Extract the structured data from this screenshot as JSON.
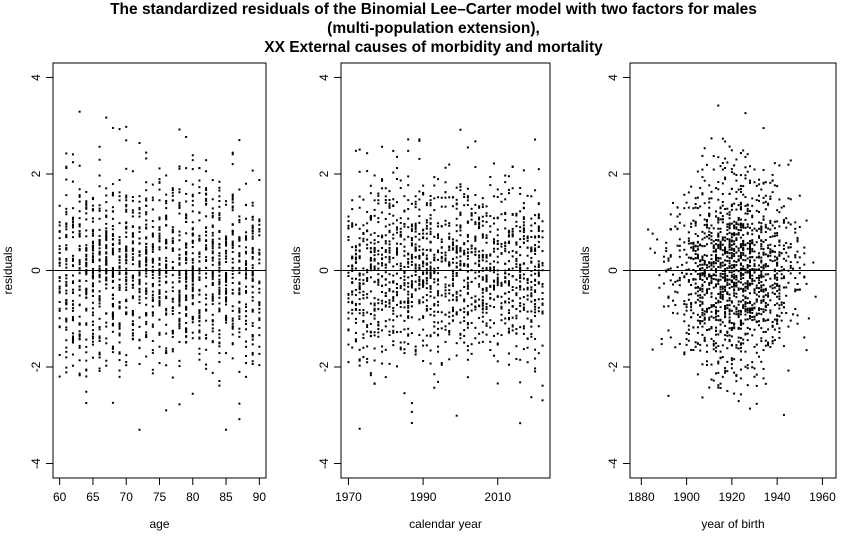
{
  "title_lines": [
    "The standardized residuals of the Binomial Lee–Carter model with two factors for males",
    "(multi-population extension),",
    "XX External causes of morbidity and mortality"
  ],
  "chart_data": [
    {
      "type": "scatter",
      "xlabel": "age",
      "ylabel": "residuals",
      "xticks": [
        60,
        65,
        70,
        75,
        80,
        85,
        90
      ],
      "xlim": [
        59,
        91
      ],
      "yticks": [
        -4,
        -2,
        0,
        2,
        4
      ],
      "ylim": [
        -4.3,
        4.3
      ],
      "reference_line_y": 0,
      "x_domain": [
        60,
        90
      ],
      "x_grid": "integer",
      "approx_points": 1500,
      "y_spread": 1.0
    },
    {
      "type": "scatter",
      "xlabel": "calendar year",
      "ylabel": "residuals",
      "xticks": [
        1970,
        1990,
        2010
      ],
      "xlim": [
        1968,
        2024
      ],
      "yticks": [
        -4,
        -2,
        0,
        2,
        4
      ],
      "ylim": [
        -4.3,
        4.3
      ],
      "reference_line_y": 0,
      "x_domain": [
        1970,
        2022
      ],
      "x_grid": "integer",
      "approx_points": 1500,
      "y_spread": 1.0
    },
    {
      "type": "scatter",
      "xlabel": "year of birth",
      "ylabel": "residuals",
      "xticks": [
        1880,
        1900,
        1920,
        1940,
        1960
      ],
      "xlim": [
        1875,
        1966
      ],
      "yticks": [
        -4,
        -2,
        0,
        2,
        4
      ],
      "ylim": [
        -4.3,
        4.3
      ],
      "reference_line_y": 0,
      "x_domain": [
        1880,
        1962
      ],
      "x_grid": "integer",
      "approx_points": 1500,
      "y_spread": 1.0,
      "x_density_peak": 1920
    }
  ]
}
